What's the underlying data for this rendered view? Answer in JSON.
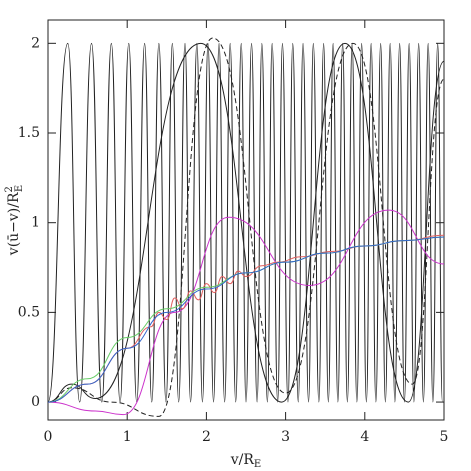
{
  "chart_data": {
    "type": "line",
    "x_label": {
      "main": "v/R",
      "sub": "E"
    },
    "y_label": {
      "main": "v(ū−v)/R",
      "sup": "2",
      "sub": "E"
    },
    "xlim": [
      0,
      5
    ],
    "ylim": [
      -0.1,
      2.13
    ],
    "xticks": [
      0,
      1,
      2,
      3,
      4,
      5
    ],
    "yticks": [
      0,
      0.5,
      1,
      1.5,
      2
    ],
    "grid": false,
    "series": [
      {
        "color": "#222222",
        "dash": false,
        "x": [
          0,
          0.25,
          0.4,
          0.55,
          0.68,
          0.8,
          0.91,
          1.02,
          1.12,
          1.22,
          1.31,
          1.4,
          1.49,
          1.57,
          1.65,
          1.73,
          1.8,
          1.88,
          1.95,
          2.02,
          2.09,
          2.16,
          2.23,
          2.3,
          2.37,
          2.44,
          2.5,
          2.57,
          2.64,
          2.7,
          2.77,
          2.83,
          2.9,
          2.96,
          3.03,
          3.09,
          3.16,
          3.22,
          3.29,
          3.35,
          3.42,
          3.48,
          3.54,
          3.6,
          3.66,
          3.72,
          3.78,
          3.84,
          3.9,
          3.96,
          4.02,
          4.08,
          4.14,
          4.2,
          4.26,
          4.32,
          4.38,
          4.44,
          4.5,
          4.56,
          4.62,
          4.68,
          4.74,
          4.8,
          4.86,
          4.92,
          4.98
        ],
        "values": [
          0,
          2,
          0,
          2,
          0,
          2,
          0,
          2,
          0,
          2,
          0,
          2,
          0,
          2,
          0,
          2,
          0,
          2,
          0,
          2,
          0,
          2,
          0,
          2,
          0,
          2,
          0,
          2,
          0,
          2,
          0,
          2,
          0,
          2,
          0,
          2,
          0,
          2,
          0,
          2,
          0,
          2,
          0,
          2,
          0,
          2,
          0,
          2,
          0,
          2,
          0,
          2,
          0,
          2,
          0,
          2,
          0,
          2,
          0,
          2,
          0,
          2,
          0,
          2,
          0,
          2,
          0
        ]
      },
      {
        "color": "#222222",
        "dash": false,
        "x": [
          0,
          0.3,
          0.6,
          1.93,
          2.95,
          3.75,
          4.55,
          5
        ],
        "values": [
          0,
          0.1,
          0.02,
          2,
          0,
          2,
          0,
          1.9
        ]
      },
      {
        "color": "#222222",
        "dash": true,
        "x": [
          0,
          0.3,
          0.8,
          1.4,
          2.08,
          3.0,
          3.85,
          4.6,
          5
        ],
        "values": [
          0,
          0.08,
          0,
          -0.08,
          2.03,
          0.05,
          2,
          0.1,
          1.8
        ]
      },
      {
        "color": "#cc33cc",
        "dash": false,
        "x": [
          0,
          0.6,
          0.95,
          1.6,
          2.28,
          3.3,
          4.3,
          5
        ],
        "values": [
          0,
          -0.05,
          -0.07,
          0.5,
          1.03,
          0.65,
          1.07,
          0.77
        ]
      },
      {
        "color": "#e06060",
        "dash": false,
        "x": [
          0,
          0.5,
          1,
          1.3,
          1.4,
          1.5,
          1.6,
          1.7,
          1.8,
          1.9,
          2.0,
          2.1,
          2.2,
          2.3,
          2.4,
          2.5,
          2.7,
          2.9,
          3.2,
          3.6,
          4,
          4.5,
          5
        ],
        "values": [
          0,
          0.1,
          0.3,
          0.42,
          0.5,
          0.46,
          0.58,
          0.52,
          0.62,
          0.57,
          0.66,
          0.61,
          0.7,
          0.66,
          0.73,
          0.7,
          0.76,
          0.78,
          0.81,
          0.84,
          0.87,
          0.9,
          0.93
        ]
      },
      {
        "color": "#66cc66",
        "dash": false,
        "x": [
          0,
          0.5,
          1,
          1.5,
          2,
          2.5,
          3,
          3.5,
          4,
          4.5,
          5
        ],
        "values": [
          0,
          0.13,
          0.36,
          0.52,
          0.64,
          0.72,
          0.78,
          0.83,
          0.87,
          0.9,
          0.92
        ]
      },
      {
        "color": "#3366cc",
        "dash": false,
        "x": [
          0,
          0.5,
          1,
          1.5,
          2,
          2.5,
          3,
          3.5,
          4,
          4.5,
          5
        ],
        "values": [
          0,
          0.1,
          0.3,
          0.5,
          0.63,
          0.72,
          0.78,
          0.83,
          0.87,
          0.9,
          0.92
        ]
      }
    ]
  }
}
